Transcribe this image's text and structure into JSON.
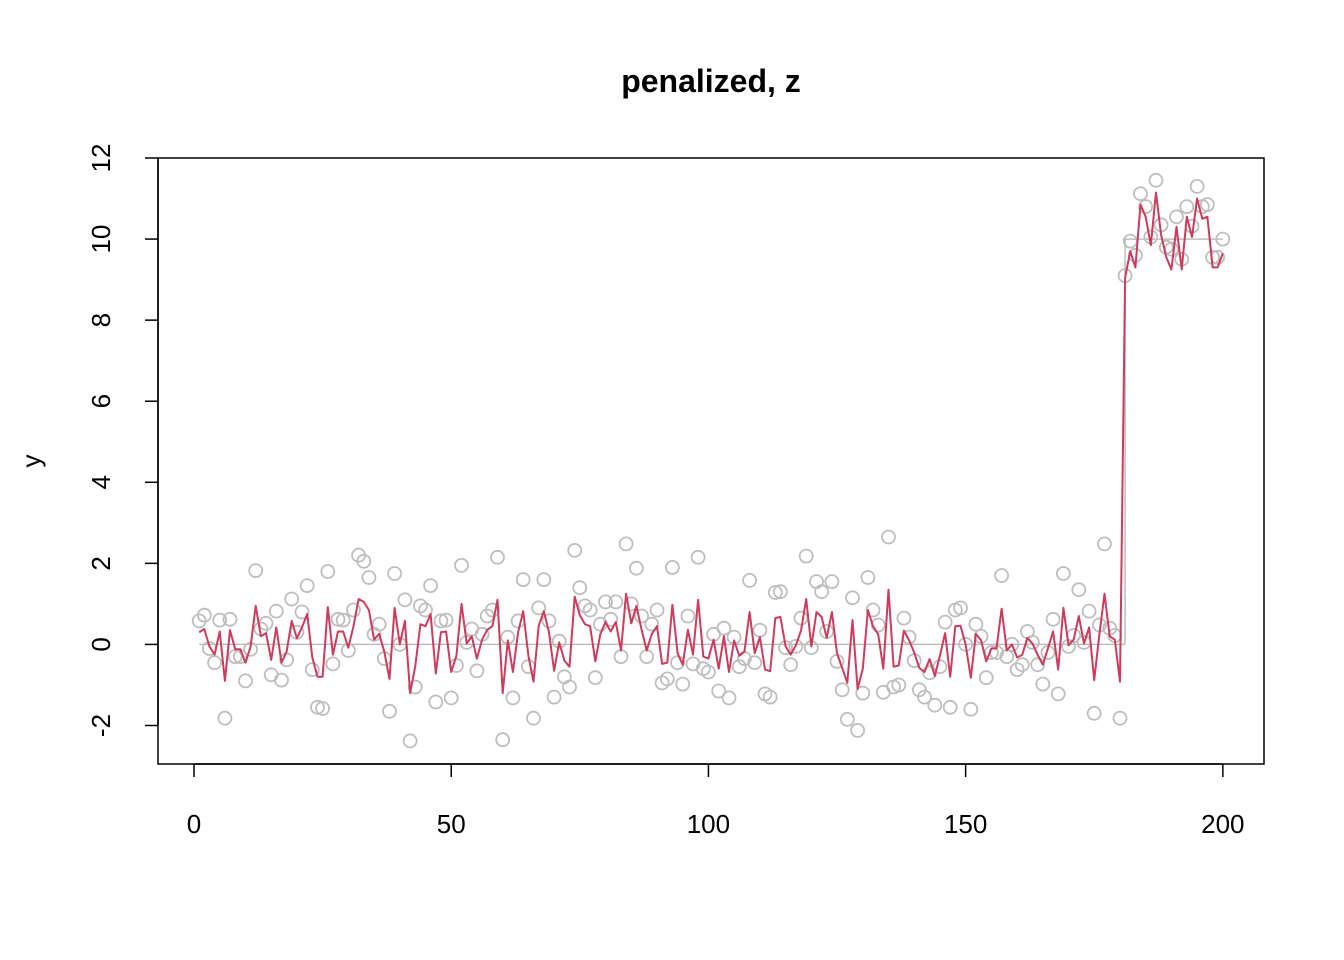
{
  "chart_data": {
    "type": "scatter",
    "title": "penalized, z",
    "xlabel": "",
    "ylabel": "y",
    "xlim": [
      -7,
      208
    ],
    "ylim": [
      -2.95,
      12.0
    ],
    "x_ticks": [
      0,
      50,
      100,
      150,
      200
    ],
    "y_ticks": [
      -2,
      0,
      2,
      4,
      6,
      8,
      10,
      12
    ],
    "grid": false,
    "colors": {
      "points": "#bebebe",
      "fit": "#cd3c5c",
      "truth": "#bebebe"
    },
    "truth": [
      {
        "x": [
          1,
          181
        ],
        "y": [
          0,
          0
        ]
      },
      {
        "x": [
          181,
          181
        ],
        "y": [
          0,
          10
        ]
      },
      {
        "x": [
          181,
          200
        ],
        "y": [
          10,
          10
        ]
      }
    ],
    "observed": [
      0.58,
      0.72,
      -0.1,
      -0.45,
      0.6,
      -1.82,
      0.62,
      -0.3,
      -0.3,
      -0.9,
      -0.12,
      1.82,
      0.38,
      0.52,
      -0.75,
      0.82,
      -0.88,
      -0.38,
      1.12,
      0.3,
      0.8,
      1.45,
      -0.62,
      -1.55,
      -1.58,
      1.8,
      -0.48,
      0.62,
      0.6,
      -0.15,
      0.85,
      2.2,
      2.05,
      1.65,
      0.25,
      0.5,
      -0.35,
      -1.65,
      1.75,
      0.0,
      1.1,
      -2.38,
      -1.05,
      0.95,
      0.85,
      1.45,
      -1.42,
      0.58,
      0.6,
      -1.32,
      -0.52,
      1.95,
      0.05,
      0.38,
      -0.65,
      0.25,
      0.7,
      0.85,
      2.15,
      -2.35,
      0.18,
      -1.32,
      0.58,
      1.6,
      -0.55,
      -1.82,
      0.9,
      1.6,
      0.58,
      -1.3,
      0.08,
      -0.8,
      -1.05,
      2.32,
      1.4,
      0.95,
      0.85,
      -0.82,
      0.5,
      1.05,
      0.62,
      1.05,
      -0.3,
      2.48,
      1.0,
      1.88,
      0.7,
      -0.3,
      0.5,
      0.85,
      -0.95,
      -0.85,
      1.9,
      -0.45,
      -0.98,
      0.7,
      -0.48,
      2.15,
      -0.6,
      -0.68,
      0.25,
      -1.15,
      0.4,
      -1.32,
      0.18,
      -0.55,
      -0.35,
      1.58,
      -0.45,
      0.35,
      -1.22,
      -1.3,
      1.28,
      1.3,
      -0.08,
      -0.5,
      -0.05,
      0.65,
      2.18,
      -0.08,
      1.55,
      1.3,
      0.32,
      1.55,
      -0.42,
      -1.12,
      -1.85,
      1.15,
      -2.12,
      -1.2,
      1.65,
      0.85,
      0.48,
      -1.18,
      2.65,
      -1.05,
      -1.0,
      0.65,
      0.18,
      -0.4,
      -1.12,
      -1.3,
      -0.7,
      -1.5,
      -0.55,
      0.55,
      -1.55,
      0.85,
      0.9,
      0.0,
      -1.6,
      0.5,
      0.2,
      -0.82,
      -0.2,
      -0.2,
      1.7,
      -0.3,
      0.0,
      -0.62,
      -0.5,
      0.32,
      0.05,
      -0.5,
      -0.98,
      -0.2,
      0.62,
      -1.22,
      1.75,
      -0.05,
      0.22,
      1.35,
      0.05,
      0.82,
      -1.7,
      0.48,
      2.48,
      0.4,
      0.22,
      -1.82,
      9.1,
      9.95,
      9.6,
      11.12,
      10.8,
      10.05,
      11.45,
      10.35,
      9.8,
      9.75,
      10.55,
      9.5,
      10.8,
      10.32,
      11.3,
      10.8,
      10.85,
      9.55,
      9.55,
      10.0
    ],
    "fitted": [
      0.3,
      0.38,
      -0.05,
      -0.25,
      0.32,
      -0.9,
      0.35,
      -0.12,
      -0.12,
      -0.45,
      -0.05,
      0.95,
      0.2,
      0.28,
      -0.38,
      0.42,
      -0.45,
      -0.18,
      0.58,
      0.15,
      0.42,
      0.75,
      -0.32,
      -0.8,
      -0.8,
      0.92,
      -0.25,
      0.32,
      0.32,
      -0.08,
      0.45,
      1.12,
      1.05,
      0.85,
      0.12,
      0.26,
      -0.18,
      -0.85,
      0.9,
      0.0,
      0.58,
      -1.2,
      -0.55,
      0.5,
      0.45,
      0.75,
      -0.72,
      0.3,
      0.32,
      -0.68,
      -0.28,
      1.0,
      0.02,
      0.2,
      -0.35,
      0.12,
      0.36,
      0.45,
      1.1,
      -1.2,
      0.1,
      -0.68,
      0.3,
      0.82,
      -0.28,
      -0.92,
      0.46,
      0.82,
      0.3,
      -0.65,
      0.05,
      -0.4,
      -0.55,
      1.18,
      0.72,
      0.5,
      0.45,
      -0.42,
      0.26,
      0.55,
      0.32,
      0.55,
      -0.15,
      1.25,
      0.52,
      0.95,
      0.36,
      -0.15,
      0.26,
      0.45,
      -0.48,
      -0.45,
      0.98,
      -0.22,
      -0.5,
      0.36,
      -0.25,
      1.1,
      -0.3,
      -0.35,
      0.12,
      -0.6,
      0.2,
      -0.68,
      0.1,
      -0.28,
      -0.18,
      0.8,
      -0.22,
      0.18,
      -0.62,
      -0.66,
      0.65,
      0.68,
      -0.05,
      -0.25,
      -0.02,
      0.34,
      1.12,
      -0.05,
      0.8,
      0.68,
      0.16,
      0.8,
      -0.22,
      -0.58,
      -0.95,
      0.6,
      -1.1,
      -0.6,
      0.85,
      0.45,
      0.25,
      -0.6,
      1.35,
      -0.55,
      -0.52,
      0.34,
      0.1,
      -0.2,
      -0.58,
      -0.68,
      -0.36,
      -0.78,
      -0.28,
      0.28,
      -0.8,
      0.45,
      0.46,
      0.0,
      -0.82,
      0.26,
      0.1,
      -0.42,
      -0.1,
      -0.1,
      0.88,
      -0.15,
      0.0,
      -0.32,
      -0.26,
      0.16,
      0.02,
      -0.26,
      -0.5,
      -0.1,
      0.32,
      -0.62,
      0.9,
      -0.02,
      0.12,
      0.7,
      0.02,
      0.42,
      -0.88,
      0.25,
      1.25,
      0.2,
      0.12,
      -0.92,
      9.05,
      9.7,
      9.3,
      10.85,
      10.55,
      9.85,
      11.15,
      10.1,
      9.55,
      9.25,
      10.3,
      9.25,
      10.55,
      10.05,
      11.0,
      10.5,
      10.55,
      9.3,
      9.3,
      9.65
    ]
  }
}
